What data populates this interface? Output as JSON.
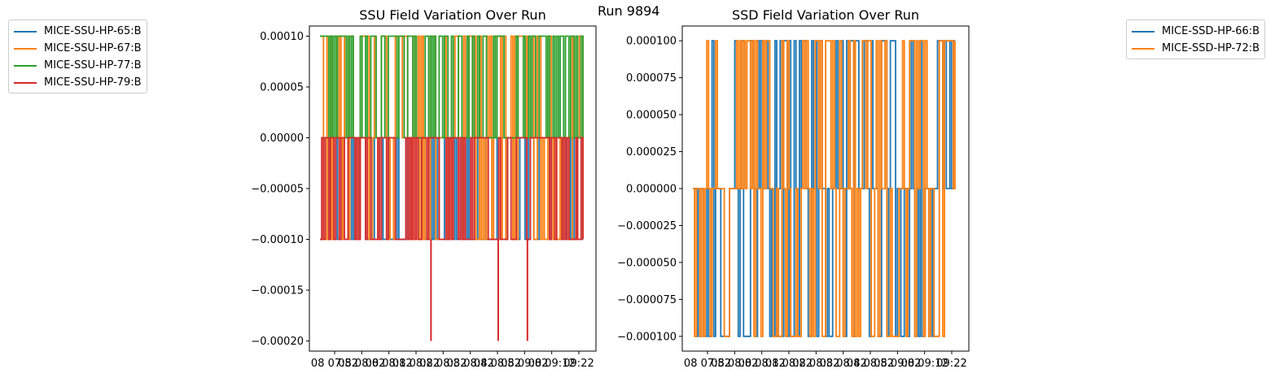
{
  "figure_title": "Run 9894",
  "chart_data": [
    {
      "type": "line",
      "title": "SSU Field Variation Over Run",
      "xlabel": "",
      "ylabel": "",
      "ylim": [
        -0.00021,
        0.00011
      ],
      "yticks": [
        0.0001,
        5e-05,
        0.0,
        -5e-05,
        -0.0001,
        -0.00015,
        -0.0002
      ],
      "ytick_labels": [
        "0.00010",
        "0.00005",
        "0.00000",
        "−0.00005",
        "−0.00010",
        "−0.00015",
        "−0.00020"
      ],
      "xtick_labels": [
        "08 07:52",
        "08 08:02",
        "08 08:12",
        "08 08:22",
        "08 08:32",
        "08 08:42",
        "08 08:52",
        "08 09:02",
        "08 09:12",
        "09:22"
      ],
      "x_range": [
        "08 07:52",
        "09:22"
      ],
      "legend_location": "outside upper-left",
      "series": [
        {
          "name": "MICE-SSU-HP-65:B",
          "color": "#1f77b4",
          "levels": [
            0.0,
            -0.0001
          ],
          "spike": null
        },
        {
          "name": "MICE-SSU-HP-67:B",
          "color": "#ff7f0e",
          "levels": [
            0.0001,
            0.0,
            -0.0001
          ],
          "spike": null
        },
        {
          "name": "MICE-SSU-HP-77:B",
          "color": "#2ca02c",
          "levels": [
            0.0001,
            0.0
          ],
          "spike": null
        },
        {
          "name": "MICE-SSU-HP-79:B",
          "color": "#d62728",
          "levels": [
            0.0,
            -0.0001
          ],
          "spike": {
            "value": -0.0002,
            "times": [
              "08 08:30",
              "08 08:53",
              "08 09:03"
            ]
          }
        }
      ]
    },
    {
      "type": "line",
      "title": "SSD Field Variation Over Run",
      "xlabel": "",
      "ylabel": "",
      "ylim": [
        -0.00011,
        0.00011
      ],
      "yticks": [
        0.0001,
        7.5e-05,
        5e-05,
        2.5e-05,
        0.0,
        -2.5e-05,
        -5e-05,
        -7.5e-05,
        -0.0001
      ],
      "ytick_labels": [
        "0.000100",
        "0.000075",
        "0.000050",
        "0.000025",
        "0.000000",
        "−0.000025",
        "−0.000050",
        "−0.000075",
        "−0.000100"
      ],
      "xtick_labels": [
        "08 07:52",
        "08 08:02",
        "08 08:12",
        "08 08:22",
        "08 08:32",
        "08 08:42",
        "08 08:52",
        "08 09:02",
        "08 09:12",
        "09:22"
      ],
      "x_range": [
        "08 07:52",
        "09:22"
      ],
      "legend_location": "outside upper-right",
      "series": [
        {
          "name": "MICE-SSD-HP-66:B",
          "color": "#1f77b4",
          "levels": [
            0.0001,
            0.0,
            -0.0001
          ]
        },
        {
          "name": "MICE-SSD-HP-72:B",
          "color": "#ff7f0e",
          "levels": [
            0.0001,
            0.0,
            -0.0001
          ]
        }
      ]
    }
  ]
}
